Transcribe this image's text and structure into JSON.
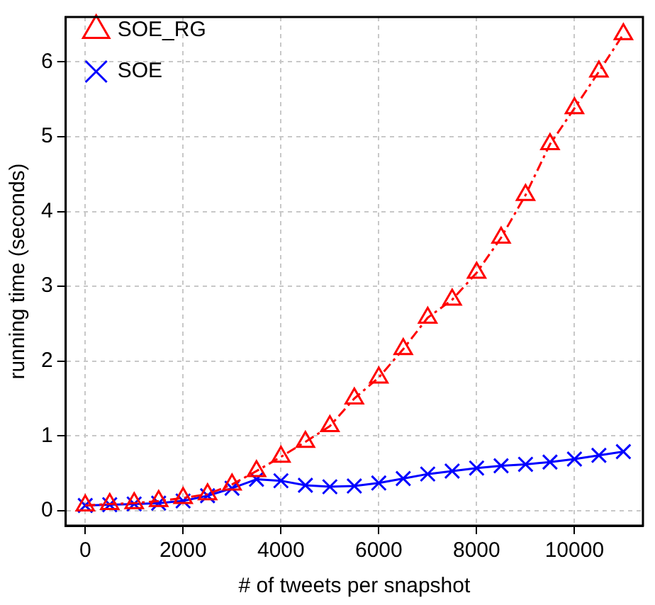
{
  "chart_data": {
    "type": "line",
    "xlabel": "# of tweets per snapshot",
    "ylabel": "running time (seconds)",
    "x": [
      0,
      500,
      1000,
      1500,
      2000,
      2500,
      3000,
      3500,
      4000,
      4500,
      5000,
      5500,
      6000,
      6500,
      7000,
      7500,
      8000,
      8500,
      9000,
      9500,
      10000,
      10500,
      11000
    ],
    "series": [
      {
        "name": "SOE_RG",
        "color": "#ff0000",
        "marker": "triangle",
        "line_style": "dashed",
        "values": [
          0.07,
          0.09,
          0.1,
          0.13,
          0.17,
          0.22,
          0.35,
          0.53,
          0.72,
          0.92,
          1.13,
          1.5,
          1.78,
          2.16,
          2.58,
          2.82,
          3.18,
          3.65,
          4.22,
          4.9,
          5.38,
          5.87,
          6.37
        ]
      },
      {
        "name": "SOE",
        "color": "#0000ff",
        "marker": "cross",
        "line_style": "solid",
        "values": [
          0.07,
          0.08,
          0.09,
          0.1,
          0.13,
          0.2,
          0.3,
          0.42,
          0.4,
          0.34,
          0.32,
          0.33,
          0.37,
          0.43,
          0.49,
          0.53,
          0.57,
          0.6,
          0.62,
          0.65,
          0.69,
          0.74,
          0.79
        ]
      }
    ],
    "xlim": [
      -400,
      11400
    ],
    "ylim": [
      -0.2,
      6.6
    ],
    "xticks": [
      0,
      2000,
      4000,
      6000,
      8000,
      10000
    ],
    "yticks": [
      0,
      1,
      2,
      3,
      4,
      5,
      6
    ],
    "grid": true,
    "legend": "top left"
  }
}
